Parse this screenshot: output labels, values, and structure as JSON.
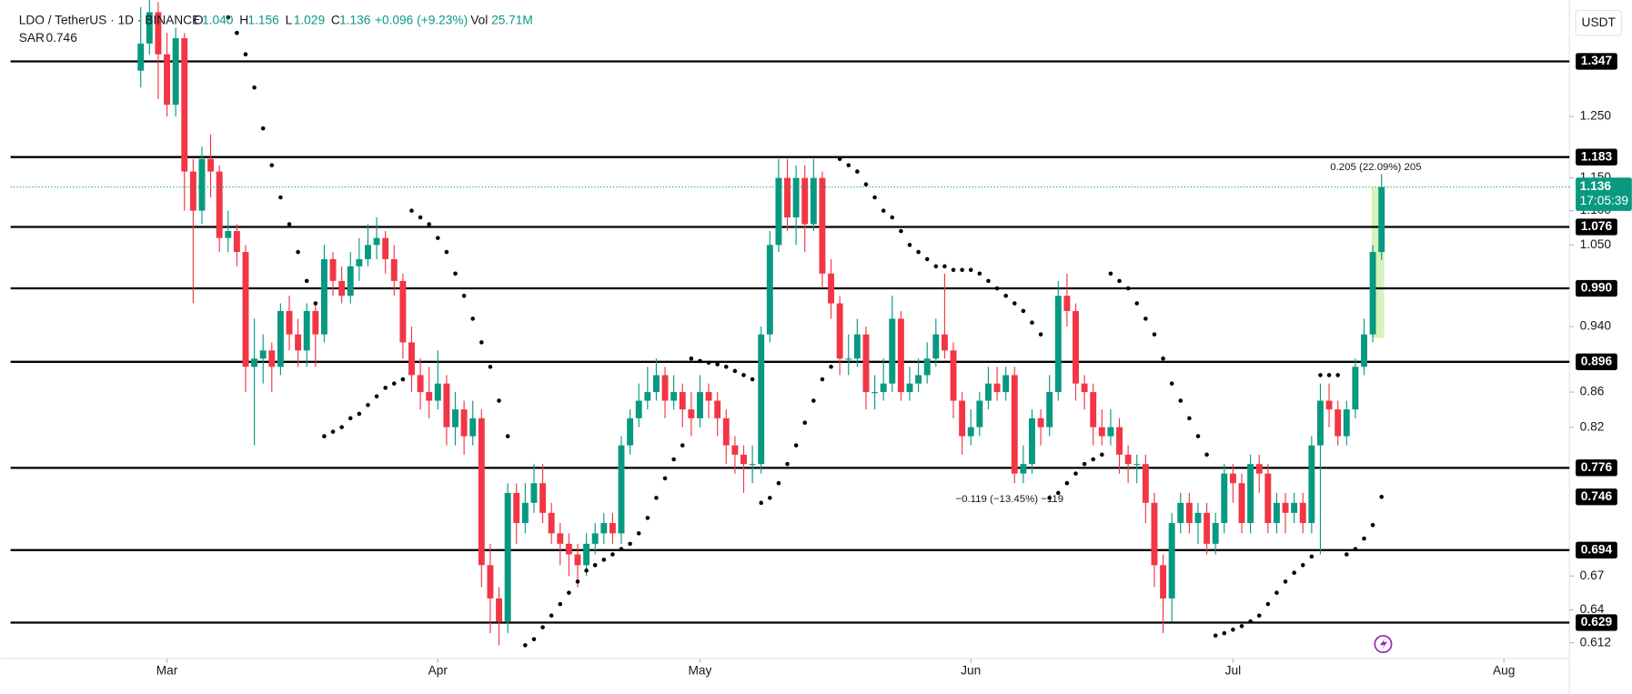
{
  "chart_data": {
    "type": "candlestick",
    "title": "LDO / TetherUS · 1D · BINANCE",
    "ohlc_legend": [
      {
        "label": "O",
        "value": "1.040"
      },
      {
        "label": "H",
        "value": "1.156"
      },
      {
        "label": "L",
        "value": "1.029"
      },
      {
        "label": "C",
        "value": "1.136"
      }
    ],
    "change": "+0.096 (+9.23%)",
    "volume": {
      "label": "Vol",
      "value": "25.71M"
    },
    "currency": "USDT",
    "countdown": "17:05:39",
    "up_color": "#089981",
    "down_color": "#f23645",
    "log_scale": true,
    "ylim": [
      0.599,
      1.464
    ],
    "yticks": [
      {
        "value": 1.25,
        "label": "1.250"
      },
      {
        "value": 1.15,
        "label": "1.150"
      },
      {
        "value": 1.1,
        "label": "1.100"
      },
      {
        "value": 1.05,
        "label": "1.050"
      },
      {
        "value": 0.94,
        "label": "0.940"
      },
      0.86,
      0.82,
      0.67,
      0.64,
      0.612
    ],
    "xlim": [
      -14.9,
      163.5
    ],
    "xticks": [
      {
        "value": 3,
        "label": "Mar"
      },
      {
        "value": 34,
        "label": "Apr"
      },
      {
        "value": 64,
        "label": "May"
      },
      {
        "value": 95,
        "label": "Jun"
      },
      {
        "value": 125,
        "label": "Jul"
      },
      {
        "value": 156,
        "label": "Aug"
      }
    ],
    "open": [
      1.33,
      1.38,
      1.44,
      1.36,
      1.27,
      1.39,
      1.16,
      1.1,
      1.18,
      1.16,
      1.06,
      1.07,
      1.04,
      0.89,
      0.9,
      0.91,
      0.89,
      0.96,
      0.93,
      0.91,
      0.96,
      0.93,
      1.03,
      1.0,
      0.98,
      1.02,
      1.03,
      1.05,
      1.06,
      1.03,
      1.0,
      0.92,
      0.88,
      0.86,
      0.85,
      0.87,
      0.82,
      0.84,
      0.81,
      0.83,
      0.68,
      0.65,
      0.63,
      0.75,
      0.72,
      0.74,
      0.76,
      0.73,
      0.71,
      0.7,
      0.69,
      0.68,
      0.7,
      0.71,
      0.72,
      0.71,
      0.8,
      0.83,
      0.85,
      0.86,
      0.88,
      0.85,
      0.86,
      0.84,
      0.83,
      0.86,
      0.85,
      0.83,
      0.8,
      0.79,
      0.78,
      0.78,
      0.93,
      1.05,
      1.15,
      1.09,
      1.15,
      1.08,
      1.15,
      1.01,
      0.97,
      0.9,
      0.9,
      0.93,
      0.86,
      0.86,
      0.87,
      0.95,
      0.86,
      0.87,
      0.88,
      0.9,
      0.93,
      0.91,
      0.85,
      0.81,
      0.82,
      0.85,
      0.87,
      0.86,
      0.88,
      0.77,
      0.78,
      0.83,
      0.82,
      0.86,
      0.98,
      0.96,
      0.87,
      0.86,
      0.82,
      0.81,
      0.82,
      0.79,
      0.78,
      0.78,
      0.74,
      0.68,
      0.65,
      0.72,
      0.74,
      0.72,
      0.73,
      0.7,
      0.72,
      0.77,
      0.76,
      0.72,
      0.78,
      0.77,
      0.72,
      0.74,
      0.73,
      0.74,
      0.72,
      0.8,
      0.85,
      0.84,
      0.81,
      0.84,
      0.89,
      0.93,
      1.04
    ],
    "high": [
      1.45,
      1.47,
      1.46,
      1.4,
      1.41,
      1.4,
      1.18,
      1.2,
      1.22,
      1.17,
      1.1,
      1.08,
      1.05,
      0.95,
      0.93,
      0.92,
      0.97,
      0.98,
      0.95,
      0.97,
      0.97,
      1.05,
      1.04,
      1.02,
      1.04,
      1.06,
      1.08,
      1.09,
      1.07,
      1.05,
      1.01,
      0.94,
      0.9,
      0.89,
      0.91,
      0.88,
      0.86,
      0.85,
      0.85,
      0.84,
      0.7,
      0.66,
      0.76,
      0.76,
      0.76,
      0.78,
      0.78,
      0.74,
      0.72,
      0.71,
      0.7,
      0.71,
      0.72,
      0.73,
      0.73,
      0.81,
      0.84,
      0.87,
      0.89,
      0.9,
      0.89,
      0.88,
      0.87,
      0.86,
      0.88,
      0.87,
      0.86,
      0.84,
      0.81,
      0.8,
      0.8,
      0.94,
      1.07,
      1.18,
      1.18,
      1.17,
      1.17,
      1.18,
      1.16,
      1.03,
      0.98,
      0.93,
      0.95,
      0.94,
      0.88,
      0.9,
      0.98,
      0.96,
      0.89,
      0.9,
      0.92,
      0.95,
      1.01,
      0.92,
      0.86,
      0.84,
      0.86,
      0.89,
      0.89,
      0.89,
      0.89,
      0.8,
      0.84,
      0.84,
      0.88,
      1.0,
      1.01,
      0.97,
      0.88,
      0.87,
      0.84,
      0.84,
      0.83,
      0.8,
      0.79,
      0.79,
      0.75,
      0.69,
      0.73,
      0.75,
      0.75,
      0.74,
      0.74,
      0.73,
      0.78,
      0.78,
      0.77,
      0.79,
      0.79,
      0.78,
      0.75,
      0.75,
      0.75,
      0.75,
      0.81,
      0.87,
      0.87,
      0.85,
      0.85,
      0.9,
      0.95,
      1.05,
      1.156
    ],
    "low": [
      1.3,
      1.36,
      1.28,
      1.25,
      1.25,
      1.1,
      0.97,
      1.08,
      1.12,
      1.04,
      1.04,
      1.02,
      0.86,
      0.8,
      0.87,
      0.86,
      0.88,
      0.91,
      0.89,
      0.89,
      0.89,
      0.92,
      0.98,
      0.97,
      0.97,
      1.0,
      1.02,
      1.03,
      1.01,
      0.98,
      0.9,
      0.86,
      0.84,
      0.83,
      0.84,
      0.8,
      0.8,
      0.79,
      0.8,
      0.66,
      0.62,
      0.61,
      0.62,
      0.7,
      0.71,
      0.73,
      0.72,
      0.7,
      0.68,
      0.67,
      0.66,
      0.67,
      0.69,
      0.7,
      0.7,
      0.7,
      0.79,
      0.82,
      0.84,
      0.85,
      0.83,
      0.84,
      0.82,
      0.81,
      0.82,
      0.83,
      0.81,
      0.78,
      0.77,
      0.75,
      0.76,
      0.77,
      0.92,
      1.04,
      1.07,
      1.05,
      1.04,
      1.07,
      0.99,
      0.95,
      0.88,
      0.88,
      0.89,
      0.84,
      0.84,
      0.85,
      0.86,
      0.85,
      0.85,
      0.86,
      0.87,
      0.89,
      0.9,
      0.83,
      0.79,
      0.8,
      0.81,
      0.84,
      0.85,
      0.85,
      0.76,
      0.76,
      0.77,
      0.8,
      0.81,
      0.85,
      0.94,
      0.85,
      0.84,
      0.8,
      0.8,
      0.8,
      0.77,
      0.76,
      0.76,
      0.72,
      0.66,
      0.62,
      0.63,
      0.71,
      0.71,
      0.7,
      0.69,
      0.69,
      0.71,
      0.74,
      0.71,
      0.71,
      0.75,
      0.71,
      0.71,
      0.71,
      0.72,
      0.71,
      0.71,
      0.69,
      0.82,
      0.8,
      0.8,
      0.83,
      0.88,
      0.92,
      1.029
    ],
    "close": [
      1.38,
      1.44,
      1.36,
      1.27,
      1.39,
      1.16,
      1.1,
      1.18,
      1.16,
      1.06,
      1.07,
      1.04,
      0.89,
      0.9,
      0.91,
      0.89,
      0.96,
      0.93,
      0.91,
      0.96,
      0.93,
      1.03,
      1.0,
      0.98,
      1.02,
      1.03,
      1.05,
      1.06,
      1.03,
      1.0,
      0.92,
      0.88,
      0.86,
      0.85,
      0.87,
      0.82,
      0.84,
      0.81,
      0.83,
      0.68,
      0.65,
      0.63,
      0.75,
      0.72,
      0.74,
      0.76,
      0.73,
      0.71,
      0.7,
      0.69,
      0.68,
      0.7,
      0.71,
      0.72,
      0.71,
      0.8,
      0.83,
      0.85,
      0.86,
      0.88,
      0.85,
      0.86,
      0.84,
      0.83,
      0.86,
      0.85,
      0.83,
      0.8,
      0.79,
      0.78,
      0.78,
      0.93,
      1.05,
      1.15,
      1.09,
      1.15,
      1.08,
      1.15,
      1.01,
      0.97,
      0.9,
      0.9,
      0.93,
      0.86,
      0.86,
      0.87,
      0.95,
      0.86,
      0.87,
      0.88,
      0.9,
      0.93,
      0.91,
      0.85,
      0.81,
      0.82,
      0.85,
      0.87,
      0.86,
      0.88,
      0.77,
      0.78,
      0.83,
      0.82,
      0.86,
      0.98,
      0.96,
      0.87,
      0.86,
      0.82,
      0.81,
      0.82,
      0.79,
      0.78,
      0.78,
      0.74,
      0.68,
      0.65,
      0.72,
      0.74,
      0.72,
      0.73,
      0.7,
      0.72,
      0.77,
      0.76,
      0.72,
      0.78,
      0.77,
      0.72,
      0.74,
      0.73,
      0.74,
      0.72,
      0.8,
      0.85,
      0.84,
      0.81,
      0.84,
      0.89,
      0.93,
      1.04,
      1.136
    ],
    "series": [
      {
        "name": "SAR",
        "color": "#000000",
        "values": [
          null,
          null,
          null,
          null,
          null,
          null,
          null,
          null,
          null,
          null,
          1.43,
          1.4,
          1.36,
          1.3,
          1.23,
          1.17,
          1.12,
          1.08,
          1.04,
          1.0,
          0.97,
          0.81,
          0.815,
          0.82,
          0.83,
          0.835,
          0.845,
          0.855,
          0.865,
          0.87,
          0.875,
          1.1,
          1.09,
          1.08,
          1.06,
          1.04,
          1.01,
          0.98,
          0.95,
          0.92,
          0.89,
          0.85,
          0.81,
          null,
          0.61,
          0.615,
          0.625,
          0.635,
          0.645,
          0.655,
          0.665,
          0.675,
          0.68,
          0.685,
          0.69,
          0.695,
          0.7,
          0.71,
          0.725,
          0.745,
          0.765,
          0.785,
          0.8,
          0.9,
          0.897,
          0.895,
          0.893,
          0.89,
          0.885,
          0.88,
          0.875,
          0.74,
          0.745,
          0.76,
          0.78,
          0.8,
          0.825,
          0.85,
          0.875,
          0.89,
          1.18,
          1.17,
          1.16,
          1.14,
          1.12,
          1.1,
          1.09,
          1.07,
          1.05,
          1.04,
          1.03,
          1.02,
          1.02,
          1.015,
          1.015,
          1.015,
          1.01,
          1.0,
          0.99,
          0.98,
          0.97,
          0.96,
          0.945,
          0.93,
          0.745,
          0.75,
          0.76,
          0.77,
          0.78,
          0.785,
          0.79,
          1.01,
          1.0,
          0.99,
          0.97,
          0.95,
          0.93,
          0.9,
          0.87,
          0.85,
          0.83,
          0.81,
          0.79,
          0.618,
          0.62,
          0.623,
          0.626,
          0.63,
          0.635,
          0.645,
          0.655,
          0.665,
          0.673,
          0.68,
          0.688,
          0.88,
          0.88,
          0.88,
          0.69,
          0.695,
          0.705,
          0.718,
          0.746
        ]
      }
    ],
    "levels": [
      1.347,
      1.183,
      1.076,
      {
        "value": 0.99,
        "label": "0.990"
      },
      0.896,
      0.776,
      0.694,
      0.629
    ],
    "level_color": "#000000",
    "annotations": [
      "0.205 (22.09%) 205",
      "−0.119 (−13.45%) −119"
    ]
  }
}
